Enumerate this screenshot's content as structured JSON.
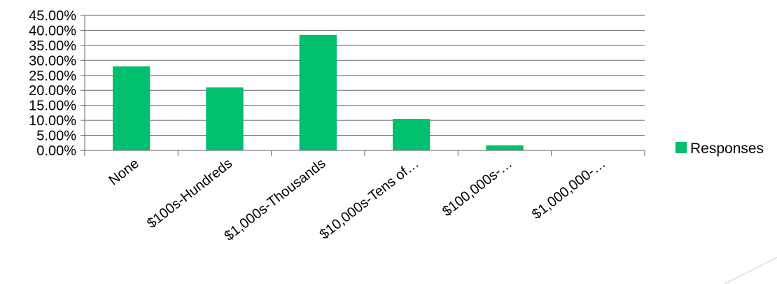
{
  "chart_data": {
    "type": "bar",
    "categories": [
      "None",
      "$100s-Hundreds",
      "$1,000s-Thousands",
      "$10,000s-Tens of…",
      "$100,000s-…",
      "$1,000,000-…"
    ],
    "series": [
      {
        "name": "Responses",
        "values": [
          0.28,
          0.21,
          0.385,
          0.105,
          0.017,
          0.0
        ]
      }
    ],
    "ylim": [
      0,
      0.45
    ],
    "yticks": [
      0,
      0.05,
      0.1,
      0.15,
      0.2,
      0.25,
      0.3,
      0.35,
      0.4,
      0.45
    ],
    "ytick_labels": [
      "0.00%",
      "5.00%",
      "10.00%",
      "15.00%",
      "20.00%",
      "25.00%",
      "30.00%",
      "35.00%",
      "40.00%",
      "45.00%"
    ],
    "title": "",
    "xlabel": "",
    "ylabel": "",
    "grid": true,
    "legend": "right"
  },
  "colors": {
    "bar": "#00bf6f",
    "grid": "#7f7f7f",
    "axis": "#7f7f7f",
    "accent_line": "#d0d0d0"
  }
}
